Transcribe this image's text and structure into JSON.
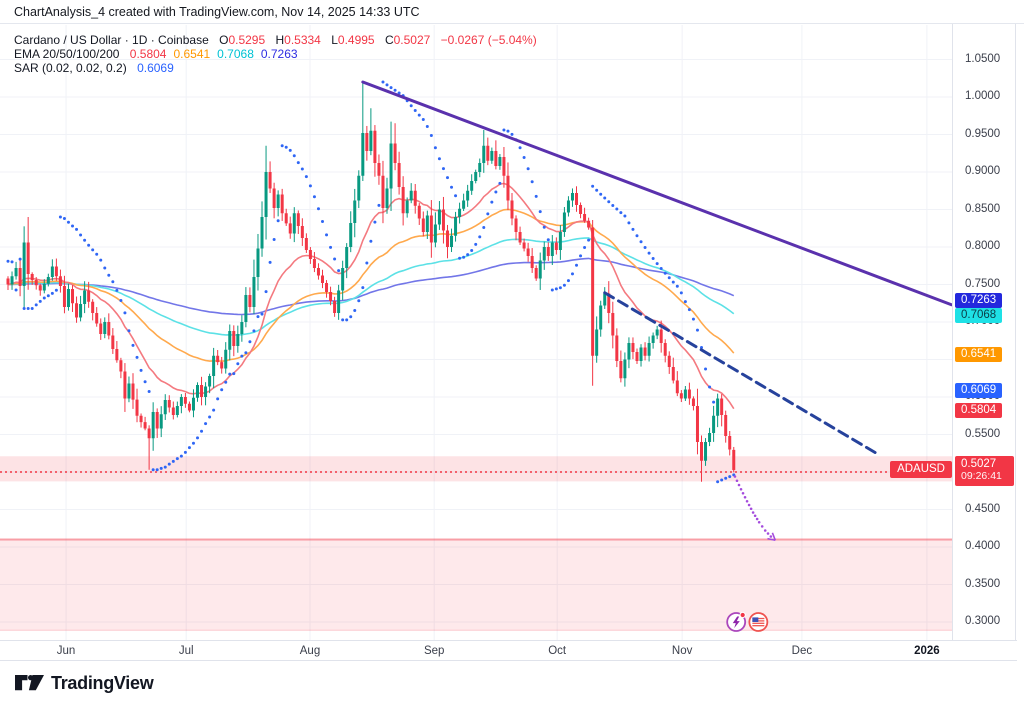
{
  "header": {
    "title": "ChartAnalysis_4 created with TradingView.com, Nov 14, 2025 14:33 UTC"
  },
  "legend": {
    "symbol_line": "Cardano / US Dollar · 1D · Coinbase",
    "ohlc": {
      "o_label": "O",
      "o": "0.5295",
      "h_label": "H",
      "h": "0.5334",
      "l_label": "L",
      "l": "0.4995",
      "c_label": "C",
      "c": "0.5027",
      "change": "−0.0267 (−5.04%)",
      "value_color": "#f23645"
    },
    "ema": {
      "label": "EMA 20/50/100/200",
      "values": [
        "0.5804",
        "0.6541",
        "0.7068",
        "0.7263"
      ],
      "colors": [
        "#f23645",
        "#ff9800",
        "#00c2d4",
        "#2d2de2"
      ]
    },
    "sar": {
      "label": "SAR (0.02, 0.02, 0.2)",
      "value": "0.6069",
      "color": "#2962ff"
    }
  },
  "price_label": {
    "symbol": "ADAUSD",
    "price": "0.5027",
    "countdown": "09:26:41"
  },
  "badges": [
    {
      "name": "ema-200-price-badge",
      "label": "0.7263",
      "price": 0.7263,
      "bg": "#2328dd",
      "fg": "#ffffff"
    },
    {
      "name": "ema-100-price-badge",
      "label": "0.7068",
      "price": 0.7068,
      "bg": "#1ee1e6",
      "fg": "#0b3c46"
    },
    {
      "name": "ema-50-price-badge",
      "label": "0.6541",
      "price": 0.6541,
      "bg": "#ff9800",
      "fg": "#ffffff"
    },
    {
      "name": "sar-price-badge",
      "label": "0.6069",
      "price": 0.6069,
      "bg": "#2962ff",
      "fg": "#ffffff"
    },
    {
      "name": "ema-20-price-badge",
      "label": "0.5804",
      "price": 0.5804,
      "bg": "#f23645",
      "fg": "#ffffff"
    }
  ],
  "footer": {
    "brand": "TradingView"
  },
  "chart_data": {
    "type": "candlestick",
    "title": "Cardano / US Dollar, 1D, Coinbase",
    "last_ohlc": {
      "open": 0.5295,
      "high": 0.5334,
      "low": 0.4995,
      "close": 0.5027,
      "change": -0.0267,
      "change_pct": -5.04
    },
    "indicators": {
      "ema_periods": [
        20,
        50,
        100,
        200
      ],
      "ema_values": [
        0.5804,
        0.6541,
        0.7068,
        0.7263
      ],
      "ema_colors": [
        "#f47a80",
        "#ffa94d",
        "#5ce1e6",
        "#7276e8"
      ],
      "sar_params": [
        0.02,
        0.02,
        0.2
      ],
      "sar_value": 0.6069,
      "sar_color": "#2f66f5"
    },
    "colors": {
      "up": "#089981",
      "down": "#f23645",
      "grid": "#f0f2f7"
    },
    "y_ticks": [
      {
        "label": "1.0500",
        "value": 1.05
      },
      {
        "label": "1.0000",
        "value": 1.0
      },
      {
        "label": "0.9500",
        "value": 0.95
      },
      {
        "label": "0.9000",
        "value": 0.9
      },
      {
        "label": "0.8500",
        "value": 0.85
      },
      {
        "label": "0.8000",
        "value": 0.8
      },
      {
        "label": "0.7500",
        "value": 0.75
      },
      {
        "label": "0.7000",
        "value": 0.7
      },
      {
        "label": "0.6500",
        "value": 0.65
      },
      {
        "label": "0.6000",
        "value": 0.6
      },
      {
        "label": "0.5500",
        "value": 0.55
      },
      {
        "label": "0.5000",
        "value": 0.5
      },
      {
        "label": "0.4500",
        "value": 0.45
      },
      {
        "label": "0.4000",
        "value": 0.4
      },
      {
        "label": "0.3500",
        "value": 0.35
      },
      {
        "label": "0.3000",
        "value": 0.3
      }
    ],
    "months": [
      {
        "label": "Jun",
        "d": 14.4
      },
      {
        "label": "Jul",
        "d": 44.2
      },
      {
        "label": "Aug",
        "d": 74.9
      },
      {
        "label": "Sep",
        "d": 105.7
      },
      {
        "label": "Oct",
        "d": 136.2
      },
      {
        "label": "Nov",
        "d": 167.2
      },
      {
        "label": "Dec",
        "d": 196.9
      },
      {
        "label": "2026",
        "d": 227.9,
        "bold": true
      }
    ],
    "days": 181,
    "first_open": 0.758,
    "price_path": [
      [
        0,
        0.75
      ],
      [
        2,
        0.772
      ],
      [
        3,
        0.748
      ],
      [
        4,
        0.806
      ],
      [
        5,
        0.764
      ],
      [
        6,
        0.756
      ],
      [
        8,
        0.742
      ],
      [
        10,
        0.76
      ],
      [
        11,
        0.774
      ],
      [
        13,
        0.748
      ],
      [
        14,
        0.72
      ],
      [
        15,
        0.744
      ],
      [
        17,
        0.706
      ],
      [
        19,
        0.742
      ],
      [
        21,
        0.712
      ],
      [
        23,
        0.684
      ],
      [
        24,
        0.7
      ],
      [
        26,
        0.664
      ],
      [
        28,
        0.634
      ],
      [
        29,
        0.598
      ],
      [
        30,
        0.618
      ],
      [
        32,
        0.575
      ],
      [
        34,
        0.558
      ],
      [
        35,
        0.545
      ],
      [
        36,
        0.58
      ],
      [
        37,
        0.558
      ],
      [
        39,
        0.596
      ],
      [
        41,
        0.576
      ],
      [
        43,
        0.6
      ],
      [
        45,
        0.582
      ],
      [
        47,
        0.616
      ],
      [
        48,
        0.6
      ],
      [
        50,
        0.628
      ],
      [
        51,
        0.655
      ],
      [
        53,
        0.638
      ],
      [
        55,
        0.688
      ],
      [
        56,
        0.668
      ],
      [
        58,
        0.7
      ],
      [
        59,
        0.736
      ],
      [
        60,
        0.72
      ],
      [
        61,
        0.76
      ],
      [
        62,
        0.798
      ],
      [
        63,
        0.84
      ],
      [
        64,
        0.9
      ],
      [
        65,
        0.878
      ],
      [
        66,
        0.852
      ],
      [
        67,
        0.87
      ],
      [
        68,
        0.845
      ],
      [
        70,
        0.818
      ],
      [
        71,
        0.845
      ],
      [
        72,
        0.828
      ],
      [
        74,
        0.796
      ],
      [
        76,
        0.772
      ],
      [
        78,
        0.752
      ],
      [
        80,
        0.728
      ],
      [
        81,
        0.712
      ],
      [
        82,
        0.742
      ],
      [
        83,
        0.772
      ],
      [
        84,
        0.8
      ],
      [
        85,
        0.832
      ],
      [
        86,
        0.862
      ],
      [
        87,
        0.895
      ],
      [
        88,
        0.952
      ],
      [
        89,
        0.928
      ],
      [
        90,
        0.955
      ],
      [
        91,
        0.912
      ],
      [
        92,
        0.895
      ],
      [
        93,
        0.852
      ],
      [
        94,
        0.878
      ],
      [
        95,
        0.938
      ],
      [
        96,
        0.912
      ],
      [
        97,
        0.88
      ],
      [
        98,
        0.845
      ],
      [
        99,
        0.862
      ],
      [
        100,
        0.875
      ],
      [
        101,
        0.855
      ],
      [
        102,
        0.838
      ],
      [
        103,
        0.82
      ],
      [
        104,
        0.842
      ],
      [
        105,
        0.806
      ],
      [
        106,
        0.83
      ],
      [
        107,
        0.85
      ],
      [
        108,
        0.822
      ],
      [
        109,
        0.8
      ],
      [
        110,
        0.815
      ],
      [
        111,
        0.84
      ],
      [
        113,
        0.862
      ],
      [
        115,
        0.888
      ],
      [
        117,
        0.912
      ],
      [
        118,
        0.935
      ],
      [
        119,
        0.915
      ],
      [
        120,
        0.928
      ],
      [
        121,
        0.908
      ],
      [
        122,
        0.92
      ],
      [
        123,
        0.895
      ],
      [
        124,
        0.862
      ],
      [
        125,
        0.838
      ],
      [
        126,
        0.82
      ],
      [
        127,
        0.806
      ],
      [
        128,
        0.798
      ],
      [
        129,
        0.788
      ],
      [
        130,
        0.772
      ],
      [
        131,
        0.758
      ],
      [
        132,
        0.782
      ],
      [
        133,
        0.8
      ],
      [
        134,
        0.788
      ],
      [
        135,
        0.806
      ],
      [
        136,
        0.796
      ],
      [
        137,
        0.82
      ],
      [
        138,
        0.846
      ],
      [
        139,
        0.862
      ],
      [
        140,
        0.872
      ],
      [
        141,
        0.856
      ],
      [
        142,
        0.844
      ],
      [
        143,
        0.835
      ],
      [
        144,
        0.826
      ],
      [
        145,
        0.655
      ],
      [
        146,
        0.69
      ],
      [
        147,
        0.722
      ],
      [
        148,
        0.738
      ],
      [
        149,
        0.712
      ],
      [
        150,
        0.682
      ],
      [
        151,
        0.648
      ],
      [
        152,
        0.625
      ],
      [
        153,
        0.65
      ],
      [
        154,
        0.672
      ],
      [
        155,
        0.66
      ],
      [
        156,
        0.648
      ],
      [
        157,
        0.666
      ],
      [
        158,
        0.655
      ],
      [
        159,
        0.672
      ],
      [
        160,
        0.682
      ],
      [
        161,
        0.69
      ],
      [
        162,
        0.672
      ],
      [
        163,
        0.655
      ],
      [
        164,
        0.64
      ],
      [
        165,
        0.622
      ],
      [
        166,
        0.605
      ],
      [
        167,
        0.598
      ],
      [
        168,
        0.61
      ],
      [
        169,
        0.598
      ],
      [
        170,
        0.588
      ],
      [
        171,
        0.54
      ],
      [
        172,
        0.515
      ],
      [
        173,
        0.54
      ],
      [
        174,
        0.552
      ],
      [
        175,
        0.575
      ],
      [
        176,
        0.598
      ],
      [
        177,
        0.576
      ],
      [
        178,
        0.548
      ],
      [
        179,
        0.53
      ],
      [
        180,
        0.5027
      ]
    ],
    "candle_overrides": {
      "5": {
        "h": 0.84
      },
      "35": {
        "l": 0.503
      },
      "64": {
        "h": 0.935
      },
      "88": {
        "o": 0.895,
        "h": 1.02,
        "l": 0.888,
        "c": 0.952
      },
      "90": {
        "h": 0.985
      },
      "96": {
        "h": 0.965
      },
      "118": {
        "h": 0.956
      },
      "145": {
        "o": 0.826,
        "h": 0.836,
        "l": 0.615,
        "c": 0.655
      },
      "171": {
        "o": 0.588,
        "c": 0.54
      },
      "172": {
        "l": 0.487
      },
      "180": {
        "o": 0.5295,
        "h": 0.5334,
        "l": 0.4995,
        "c": 0.5027
      }
    },
    "trendlines": [
      {
        "name": "primary-downtrend-line",
        "style": "solid",
        "from": [
          88,
          1.02
        ],
        "to": [
          234,
          0.723
        ],
        "color": "#5a31ad",
        "width": 3
      },
      {
        "name": "secondary-downtrend-line",
        "style": "dashed",
        "from": [
          148,
          0.739
        ],
        "to": [
          216,
          0.523
        ],
        "color": "#26429c",
        "width": 3,
        "dash": "10 6"
      }
    ],
    "zones": [
      {
        "name": "support-band",
        "top": 0.521,
        "bottom": 0.4875,
        "line": 0.5,
        "fill": "rgba(242,54,69,0.14)",
        "line_color": "#f23645"
      },
      {
        "name": "lower-support-zone",
        "top": 0.41,
        "bottom": 0.289,
        "fill": "rgba(242,54,69,0.11)",
        "border_color": "rgba(242,54,69,0.45)"
      }
    ],
    "projection": {
      "color": "#a44bdd",
      "points": [
        [
          180.3,
          0.494
        ],
        [
          181.8,
          0.477
        ],
        [
          183.3,
          0.461
        ],
        [
          184.8,
          0.446
        ],
        [
          186.3,
          0.433
        ],
        [
          187.8,
          0.422
        ],
        [
          189.2,
          0.414
        ],
        [
          190.3,
          0.409
        ]
      ]
    },
    "events": [
      {
        "name": "crypto-event-icon",
        "d": 180.6,
        "price": 0.3,
        "kind": "lightning",
        "ring": "#ab47bc",
        "glyph": "#8e24aa",
        "dot": "#f23645"
      },
      {
        "name": "us-economic-event-icon",
        "d": 186.1,
        "price": 0.3,
        "kind": "us-flag",
        "ring": "#ef5350",
        "canton": "#3f51b5",
        "stripe": "#ef5350"
      }
    ]
  }
}
